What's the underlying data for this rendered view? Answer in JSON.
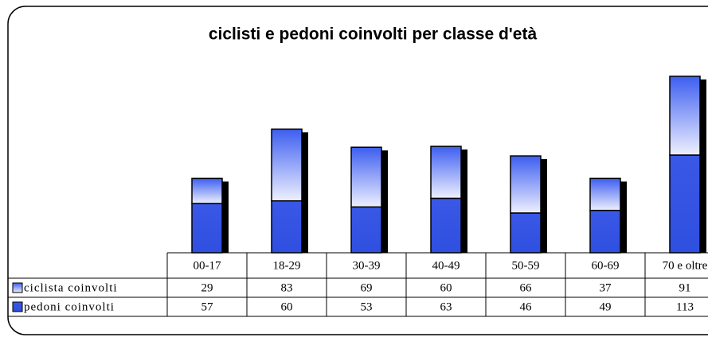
{
  "chart_data": {
    "type": "stacked_bar",
    "title": "ciclisti e pedoni coinvolti per classe d'età",
    "categories": [
      "00-17",
      "18-29",
      "30-39",
      "40-49",
      "50-59",
      "60-69",
      "70 e oltre"
    ],
    "series": [
      {
        "name": "ciclista coinvolti",
        "color": "#3d5ef0",
        "values": [
          29,
          83,
          69,
          60,
          66,
          37,
          91
        ]
      },
      {
        "name": "pedoni coinvolti",
        "color": "#3a58e6",
        "values": [
          57,
          60,
          53,
          63,
          46,
          49,
          113
        ]
      }
    ]
  }
}
